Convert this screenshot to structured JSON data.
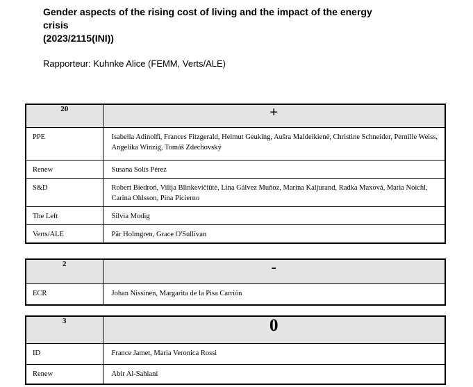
{
  "header": {
    "title_lines": [
      "Gender aspects of the rising cost of living and the impact of the energy",
      "crisis",
      "(2023/2115(INI))"
    ],
    "rapporteur": "Rapporteur: Kuhnke Alice (FEMM, Verts/ALE)"
  },
  "colors": {
    "table_header_bg": "#e4e4e4",
    "border": "#000000",
    "text": "#000000"
  },
  "tables": [
    {
      "count": "20",
      "symbol": "+",
      "meaning": "votes in favour",
      "rows": [
        {
          "group": "PPE",
          "members": "Isabella Adinolfi, Frances Fitzgerald, Helmut Geuking, Aušra Maldeikienė, Christine Schneider, Pernille Weiss, Angelika Winzig, Tomáš Zdechovský"
        },
        {
          "group": "Renew",
          "members": "Susana Solís Pérez"
        },
        {
          "group": "S&D",
          "members": "Robert Biedroń, Vilija Blinkevičiūtė, Lina Gálvez Muñoz, Marina Kaljurand, Radka Maxová, Maria Noichl, Carina Ohlsson, Pina Picierno"
        },
        {
          "group": "The Left",
          "members": "Silvia Modig"
        },
        {
          "group": "Verts/ALE",
          "members": "Pär Holmgren, Grace O'Sullivan"
        }
      ]
    },
    {
      "count": "2",
      "symbol": "-",
      "meaning": "votes against",
      "rows": [
        {
          "group": "ECR",
          "members": "Johan Nissinen, Margarita de la Pisa Carrión"
        }
      ]
    },
    {
      "count": "3",
      "symbol": "0",
      "meaning": "abstentions",
      "rows": [
        {
          "group": "ID",
          "members": "France Jamet, Maria Veronica Rossi"
        },
        {
          "group": "Renew",
          "members": "Abir Al-Sahlani"
        }
      ]
    }
  ]
}
